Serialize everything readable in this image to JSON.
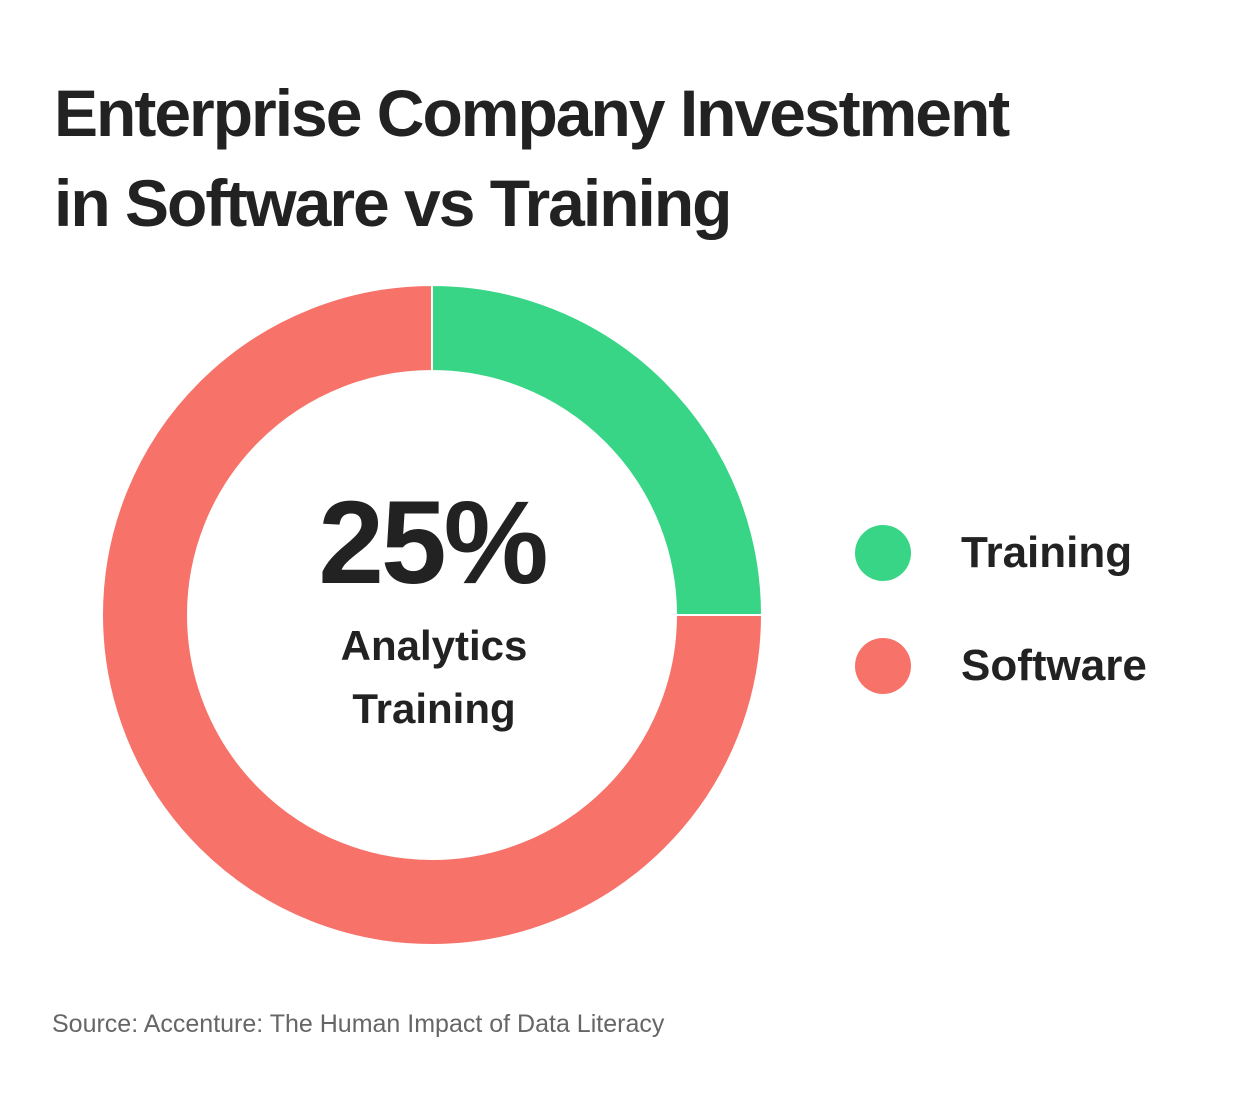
{
  "title": {
    "line1": "Enterprise Company Investment",
    "line2": "in Software vs Training"
  },
  "chart_data": {
    "type": "pie",
    "donut": true,
    "categories": [
      "Training",
      "Software"
    ],
    "values": [
      25,
      75
    ],
    "unit": "%",
    "colors": [
      "#37d585",
      "#f77269"
    ],
    "center_value": "25%",
    "center_label_lines": [
      "Analytics",
      "Training"
    ],
    "legend_position": "right",
    "title": "Enterprise Company Investment in Software vs Training"
  },
  "legend": {
    "items": [
      {
        "label": "Training",
        "color": "#37d585"
      },
      {
        "label": "Software",
        "color": "#f77269"
      }
    ]
  },
  "source": "Source: Accenture: The Human Impact of Data Literacy"
}
